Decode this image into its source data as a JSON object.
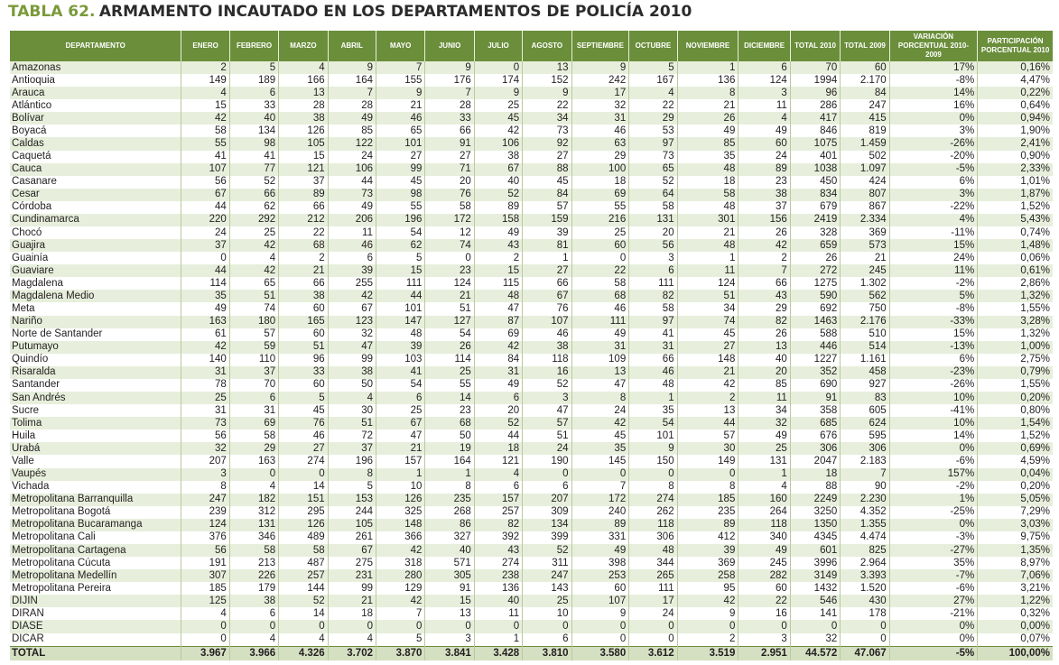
{
  "title": {
    "number": "TABLA 62.",
    "text": "ARMAMENTO INCAUTADO EN LOS DEPARTAMENTOS DE POLICÍA 2010"
  },
  "colors": {
    "header_bg": "#6a8e3a",
    "row_alt": "#e7efdc",
    "total_bg": "#d5e0c2",
    "title_accent": "#7a9a3a"
  },
  "headers": [
    "DEPARTAMENTO",
    "ENERO",
    "FEBRERO",
    "MARZO",
    "ABRIL",
    "MAYO",
    "JUNIO",
    "JULIO",
    "AGOSTO",
    "SEPTIEMBRE",
    "OCTUBRE",
    "NOVIEMBRE",
    "DICIEMBRE",
    "TOTAL 2010",
    "TOTAL 2009",
    "VARIACIÓN PORCENTUAL 2010-2009",
    "PARTICIPACIÓN PORCENTUAL 2010"
  ],
  "rows": [
    [
      "Amazonas",
      "2",
      "5",
      "4",
      "9",
      "7",
      "9",
      "0",
      "13",
      "9",
      "5",
      "1",
      "6",
      "70",
      "60",
      "17%",
      "0,16%"
    ],
    [
      "Antioquia",
      "149",
      "189",
      "166",
      "164",
      "155",
      "176",
      "174",
      "152",
      "242",
      "167",
      "136",
      "124",
      "1994",
      "2.170",
      "-8%",
      "4,47%"
    ],
    [
      "Arauca",
      "4",
      "6",
      "13",
      "7",
      "9",
      "7",
      "9",
      "9",
      "17",
      "4",
      "8",
      "3",
      "96",
      "84",
      "14%",
      "0,22%"
    ],
    [
      "Atlántico",
      "15",
      "33",
      "28",
      "28",
      "21",
      "28",
      "25",
      "22",
      "32",
      "22",
      "21",
      "11",
      "286",
      "247",
      "16%",
      "0,64%"
    ],
    [
      "Bolívar",
      "42",
      "40",
      "38",
      "49",
      "46",
      "33",
      "45",
      "34",
      "31",
      "29",
      "26",
      "4",
      "417",
      "415",
      "0%",
      "0,94%"
    ],
    [
      "Boyacá",
      "58",
      "134",
      "126",
      "85",
      "65",
      "66",
      "42",
      "73",
      "46",
      "53",
      "49",
      "49",
      "846",
      "819",
      "3%",
      "1,90%"
    ],
    [
      "Caldas",
      "55",
      "98",
      "105",
      "122",
      "101",
      "91",
      "106",
      "92",
      "63",
      "97",
      "85",
      "60",
      "1075",
      "1.459",
      "-26%",
      "2,41%"
    ],
    [
      "Caquetá",
      "41",
      "41",
      "15",
      "24",
      "27",
      "27",
      "38",
      "27",
      "29",
      "73",
      "35",
      "24",
      "401",
      "502",
      "-20%",
      "0,90%"
    ],
    [
      "Cauca",
      "107",
      "77",
      "121",
      "106",
      "99",
      "71",
      "67",
      "88",
      "100",
      "65",
      "48",
      "89",
      "1038",
      "1.097",
      "-5%",
      "2,33%"
    ],
    [
      "Casanare",
      "56",
      "52",
      "37",
      "44",
      "45",
      "20",
      "40",
      "45",
      "18",
      "52",
      "18",
      "23",
      "450",
      "424",
      "6%",
      "1,01%"
    ],
    [
      "Cesar",
      "67",
      "66",
      "89",
      "73",
      "98",
      "76",
      "52",
      "84",
      "69",
      "64",
      "58",
      "38",
      "834",
      "807",
      "3%",
      "1,87%"
    ],
    [
      "Córdoba",
      "44",
      "62",
      "66",
      "49",
      "55",
      "58",
      "89",
      "57",
      "55",
      "58",
      "48",
      "37",
      "679",
      "867",
      "-22%",
      "1,52%"
    ],
    [
      "Cundinamarca",
      "220",
      "292",
      "212",
      "206",
      "196",
      "172",
      "158",
      "159",
      "216",
      "131",
      "301",
      "156",
      "2419",
      "2.334",
      "4%",
      "5,43%"
    ],
    [
      "Chocó",
      "24",
      "25",
      "22",
      "11",
      "54",
      "12",
      "49",
      "39",
      "25",
      "20",
      "21",
      "26",
      "328",
      "369",
      "-11%",
      "0,74%"
    ],
    [
      "Guajira",
      "37",
      "42",
      "68",
      "46",
      "62",
      "74",
      "43",
      "81",
      "60",
      "56",
      "48",
      "42",
      "659",
      "573",
      "15%",
      "1,48%"
    ],
    [
      "Guainía",
      "0",
      "4",
      "2",
      "6",
      "5",
      "0",
      "2",
      "1",
      "0",
      "3",
      "1",
      "2",
      "26",
      "21",
      "24%",
      "0,06%"
    ],
    [
      "Guaviare",
      "44",
      "42",
      "21",
      "39",
      "15",
      "23",
      "15",
      "27",
      "22",
      "6",
      "11",
      "7",
      "272",
      "245",
      "11%",
      "0,61%"
    ],
    [
      "Magdalena",
      "114",
      "65",
      "66",
      "255",
      "111",
      "124",
      "115",
      "66",
      "58",
      "111",
      "124",
      "66",
      "1275",
      "1.302",
      "-2%",
      "2,86%"
    ],
    [
      "Magdalena Medio",
      "35",
      "51",
      "38",
      "42",
      "44",
      "21",
      "48",
      "67",
      "68",
      "82",
      "51",
      "43",
      "590",
      "562",
      "5%",
      "1,32%"
    ],
    [
      "Meta",
      "49",
      "74",
      "60",
      "67",
      "101",
      "51",
      "47",
      "76",
      "46",
      "58",
      "34",
      "29",
      "692",
      "750",
      "-8%",
      "1,55%"
    ],
    [
      "Nariño",
      "163",
      "180",
      "165",
      "123",
      "147",
      "127",
      "87",
      "107",
      "111",
      "97",
      "74",
      "82",
      "1463",
      "2.176",
      "-33%",
      "3,28%"
    ],
    [
      "Norte de Santander",
      "61",
      "57",
      "60",
      "32",
      "48",
      "54",
      "69",
      "46",
      "49",
      "41",
      "45",
      "26",
      "588",
      "510",
      "15%",
      "1,32%"
    ],
    [
      "Putumayo",
      "42",
      "59",
      "51",
      "47",
      "39",
      "26",
      "42",
      "38",
      "31",
      "31",
      "27",
      "13",
      "446",
      "514",
      "-13%",
      "1,00%"
    ],
    [
      "Quindío",
      "140",
      "110",
      "96",
      "99",
      "103",
      "114",
      "84",
      "118",
      "109",
      "66",
      "148",
      "40",
      "1227",
      "1.161",
      "6%",
      "2,75%"
    ],
    [
      "Risaralda",
      "31",
      "37",
      "33",
      "38",
      "41",
      "25",
      "31",
      "16",
      "13",
      "46",
      "21",
      "20",
      "352",
      "458",
      "-23%",
      "0,79%"
    ],
    [
      "Santander",
      "78",
      "70",
      "60",
      "50",
      "54",
      "55",
      "49",
      "52",
      "47",
      "48",
      "42",
      "85",
      "690",
      "927",
      "-26%",
      "1,55%"
    ],
    [
      "San Andrés",
      "25",
      "6",
      "5",
      "4",
      "6",
      "14",
      "6",
      "3",
      "8",
      "1",
      "2",
      "11",
      "91",
      "83",
      "10%",
      "0,20%"
    ],
    [
      "Sucre",
      "31",
      "31",
      "45",
      "30",
      "25",
      "23",
      "20",
      "47",
      "24",
      "35",
      "13",
      "34",
      "358",
      "605",
      "-41%",
      "0,80%"
    ],
    [
      "Tolima",
      "73",
      "69",
      "76",
      "51",
      "67",
      "68",
      "52",
      "57",
      "42",
      "54",
      "44",
      "32",
      "685",
      "624",
      "10%",
      "1,54%"
    ],
    [
      "Huila",
      "56",
      "58",
      "46",
      "72",
      "47",
      "50",
      "44",
      "51",
      "45",
      "101",
      "57",
      "49",
      "676",
      "595",
      "14%",
      "1,52%"
    ],
    [
      "Urabá",
      "32",
      "29",
      "27",
      "37",
      "21",
      "19",
      "18",
      "24",
      "35",
      "9",
      "30",
      "25",
      "306",
      "306",
      "0%",
      "0,69%"
    ],
    [
      "Valle",
      "207",
      "163",
      "274",
      "196",
      "157",
      "164",
      "121",
      "190",
      "145",
      "150",
      "149",
      "131",
      "2047",
      "2.183",
      "-6%",
      "4,59%"
    ],
    [
      "Vaupés",
      "3",
      "0",
      "0",
      "8",
      "1",
      "1",
      "4",
      "0",
      "0",
      "0",
      "0",
      "1",
      "18",
      "7",
      "157%",
      "0,04%"
    ],
    [
      "Vichada",
      "8",
      "4",
      "14",
      "5",
      "10",
      "8",
      "6",
      "6",
      "7",
      "8",
      "8",
      "4",
      "88",
      "90",
      "-2%",
      "0,20%"
    ],
    [
      "Metropolitana Barranquilla",
      "247",
      "182",
      "151",
      "153",
      "126",
      "235",
      "157",
      "207",
      "172",
      "274",
      "185",
      "160",
      "2249",
      "2.230",
      "1%",
      "5,05%"
    ],
    [
      "Metropolitana Bogotá",
      "239",
      "312",
      "295",
      "244",
      "325",
      "268",
      "257",
      "309",
      "240",
      "262",
      "235",
      "264",
      "3250",
      "4.352",
      "-25%",
      "7,29%"
    ],
    [
      "Metropolitana Bucaramanga",
      "124",
      "131",
      "126",
      "105",
      "148",
      "86",
      "82",
      "134",
      "89",
      "118",
      "89",
      "118",
      "1350",
      "1.355",
      "0%",
      "3,03%"
    ],
    [
      "Metropolitana Cali",
      "376",
      "346",
      "489",
      "261",
      "366",
      "327",
      "392",
      "399",
      "331",
      "306",
      "412",
      "340",
      "4345",
      "4.474",
      "-3%",
      "9,75%"
    ],
    [
      "Metropolitana Cartagena",
      "56",
      "58",
      "58",
      "67",
      "42",
      "40",
      "43",
      "52",
      "49",
      "48",
      "39",
      "49",
      "601",
      "825",
      "-27%",
      "1,35%"
    ],
    [
      "Metropolitana Cúcuta",
      "191",
      "213",
      "487",
      "275",
      "318",
      "571",
      "274",
      "311",
      "398",
      "344",
      "369",
      "245",
      "3996",
      "2.964",
      "35%",
      "8,97%"
    ],
    [
      "Metropolitana Medellín",
      "307",
      "226",
      "257",
      "231",
      "280",
      "305",
      "238",
      "247",
      "253",
      "265",
      "258",
      "282",
      "3149",
      "3.393",
      "-7%",
      "7,06%"
    ],
    [
      "Metropolitana Pereira",
      "185",
      "179",
      "144",
      "99",
      "129",
      "91",
      "136",
      "143",
      "60",
      "111",
      "95",
      "60",
      "1432",
      "1.520",
      "-6%",
      "3,21%"
    ],
    [
      "DIJIN",
      "125",
      "38",
      "52",
      "21",
      "42",
      "15",
      "40",
      "25",
      "107",
      "17",
      "42",
      "22",
      "546",
      "430",
      "27%",
      "1,22%"
    ],
    [
      "DIRAN",
      "4",
      "6",
      "14",
      "18",
      "7",
      "13",
      "11",
      "10",
      "9",
      "24",
      "9",
      "16",
      "141",
      "178",
      "-21%",
      "0,32%"
    ],
    [
      "DIASE",
      "0",
      "0",
      "0",
      "0",
      "0",
      "0",
      "0",
      "0",
      "0",
      "0",
      "0",
      "0",
      "0",
      "0",
      "0%",
      "0,00%"
    ],
    [
      "DICAR",
      "0",
      "4",
      "4",
      "4",
      "5",
      "3",
      "1",
      "6",
      "0",
      "0",
      "2",
      "3",
      "32",
      "0",
      "0%",
      "0,07%"
    ]
  ],
  "total": [
    "TOTAL",
    "3.967",
    "3.966",
    "4.326",
    "3.702",
    "3.870",
    "3.841",
    "3.428",
    "3.810",
    "3.580",
    "3.612",
    "3.519",
    "2.951",
    "44.572",
    "47.067",
    "-5%",
    "100,00%"
  ]
}
